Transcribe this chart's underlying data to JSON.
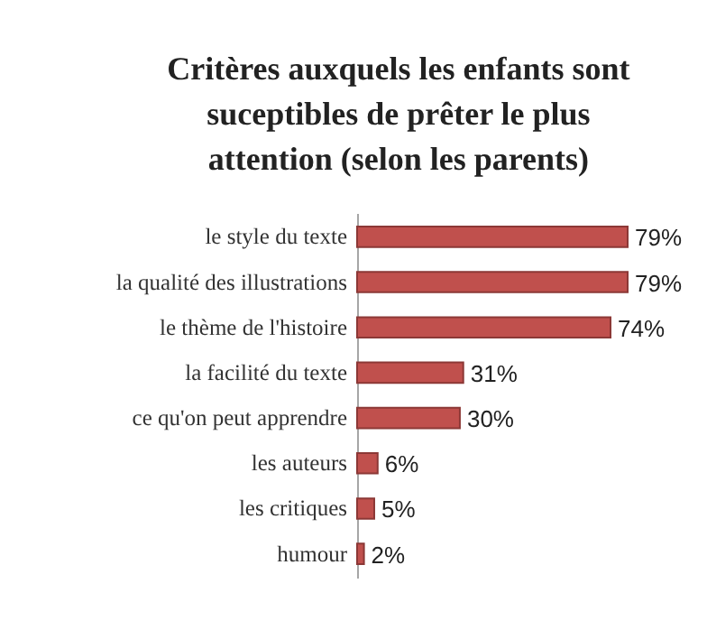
{
  "chart_data": {
    "type": "bar",
    "orientation": "horizontal",
    "title": "Critères auxquels les enfants sont suceptibles de prêter le plus attention (selon les parents)",
    "categories": [
      "le style du texte",
      "la qualité des illustrations",
      "le thème de l'histoire",
      "la facilité du texte",
      "ce qu'on peut apprendre",
      "les auteurs",
      "les critiques",
      "humour"
    ],
    "values": [
      79,
      79,
      74,
      31,
      30,
      6,
      5,
      2
    ],
    "value_labels": [
      "79%",
      "79%",
      "74%",
      "31%",
      "30%",
      "6%",
      "5%",
      "2%"
    ],
    "color": "#c0504d"
  }
}
